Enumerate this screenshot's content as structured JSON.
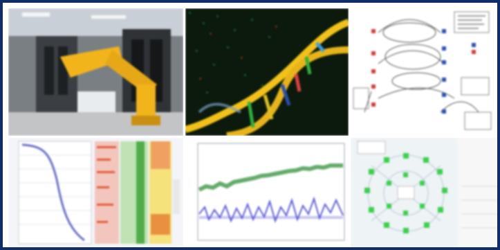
{
  "collage": {
    "tiles": [
      {
        "subject": "yellow-robot-arm-in-lab",
        "colors": {
          "robot": "#f2b41b",
          "bg": "#6b6f72"
        }
      },
      {
        "subject": "dna-double-helix-on-microarray",
        "colors": {
          "bg": "#0b1a0c",
          "helix": "#f2c21a"
        }
      },
      {
        "subject": "pathway-diagram",
        "colors": {
          "node_red": "#d23b3b",
          "node_blue": "#2a4fb0"
        }
      },
      {
        "subject": "sorted-curve-with-heatmap-columns",
        "colors": {
          "curve": "#6a6fc7"
        }
      },
      {
        "subject": "noisy-time-series-plot",
        "colors": {
          "upper": "#2f8f3a",
          "lower": "#5b5ad6"
        }
      },
      {
        "subject": "green-node-network-graph",
        "colors": {
          "node": "#3ad14c"
        }
      }
    ],
    "border_color": "#102c6b"
  }
}
